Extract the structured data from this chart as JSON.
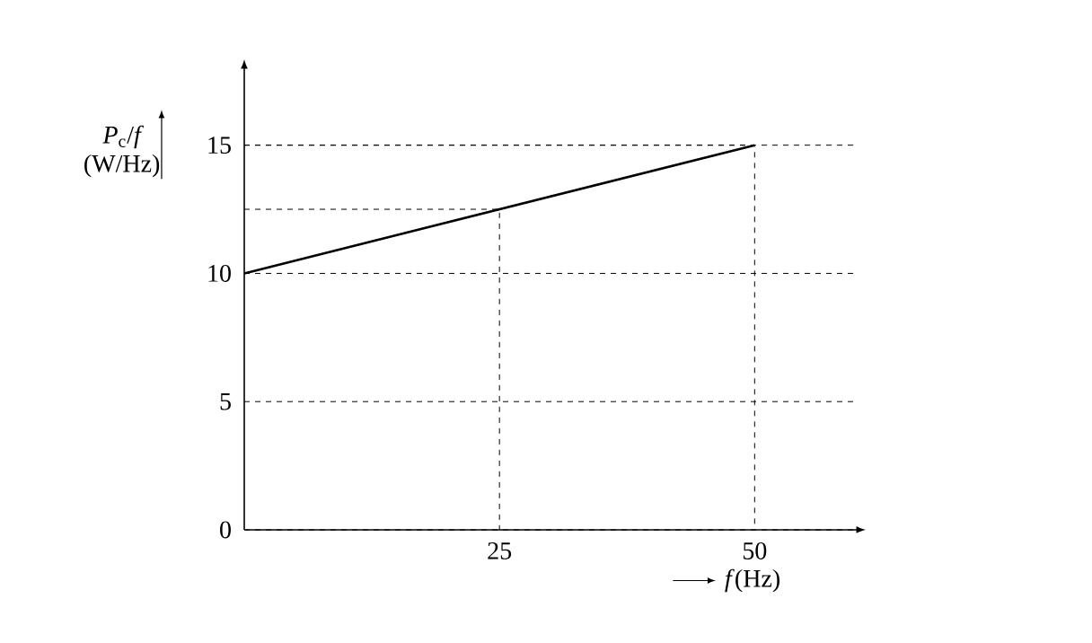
{
  "chart_data": {
    "type": "line",
    "xlabel": "*f*(Hz)",
    "ylabel": "*P*$_{c}$/*f* (W/Hz)",
    "xlim": [
      0,
      60
    ],
    "ylim": [
      0,
      18
    ],
    "xticks": [
      25,
      50
    ],
    "yticks": [
      0,
      5,
      10,
      15
    ],
    "grid": "y",
    "marker": "none",
    "series": [
      {
        "color": "#000000",
        "x": [
          0,
          50
        ],
        "values": [
          10,
          15
        ],
        "line_style": "solid"
      },
      {
        "color": "#000000",
        "x": [
          0,
          25,
          25
        ],
        "values": [
          12.5,
          12.5,
          0
        ],
        "line_style": "dashed"
      },
      {
        "color": "#000000",
        "x": [
          0,
          50,
          50
        ],
        "values": [
          15,
          15,
          0
        ],
        "line_style": "dashed"
      }
    ]
  }
}
